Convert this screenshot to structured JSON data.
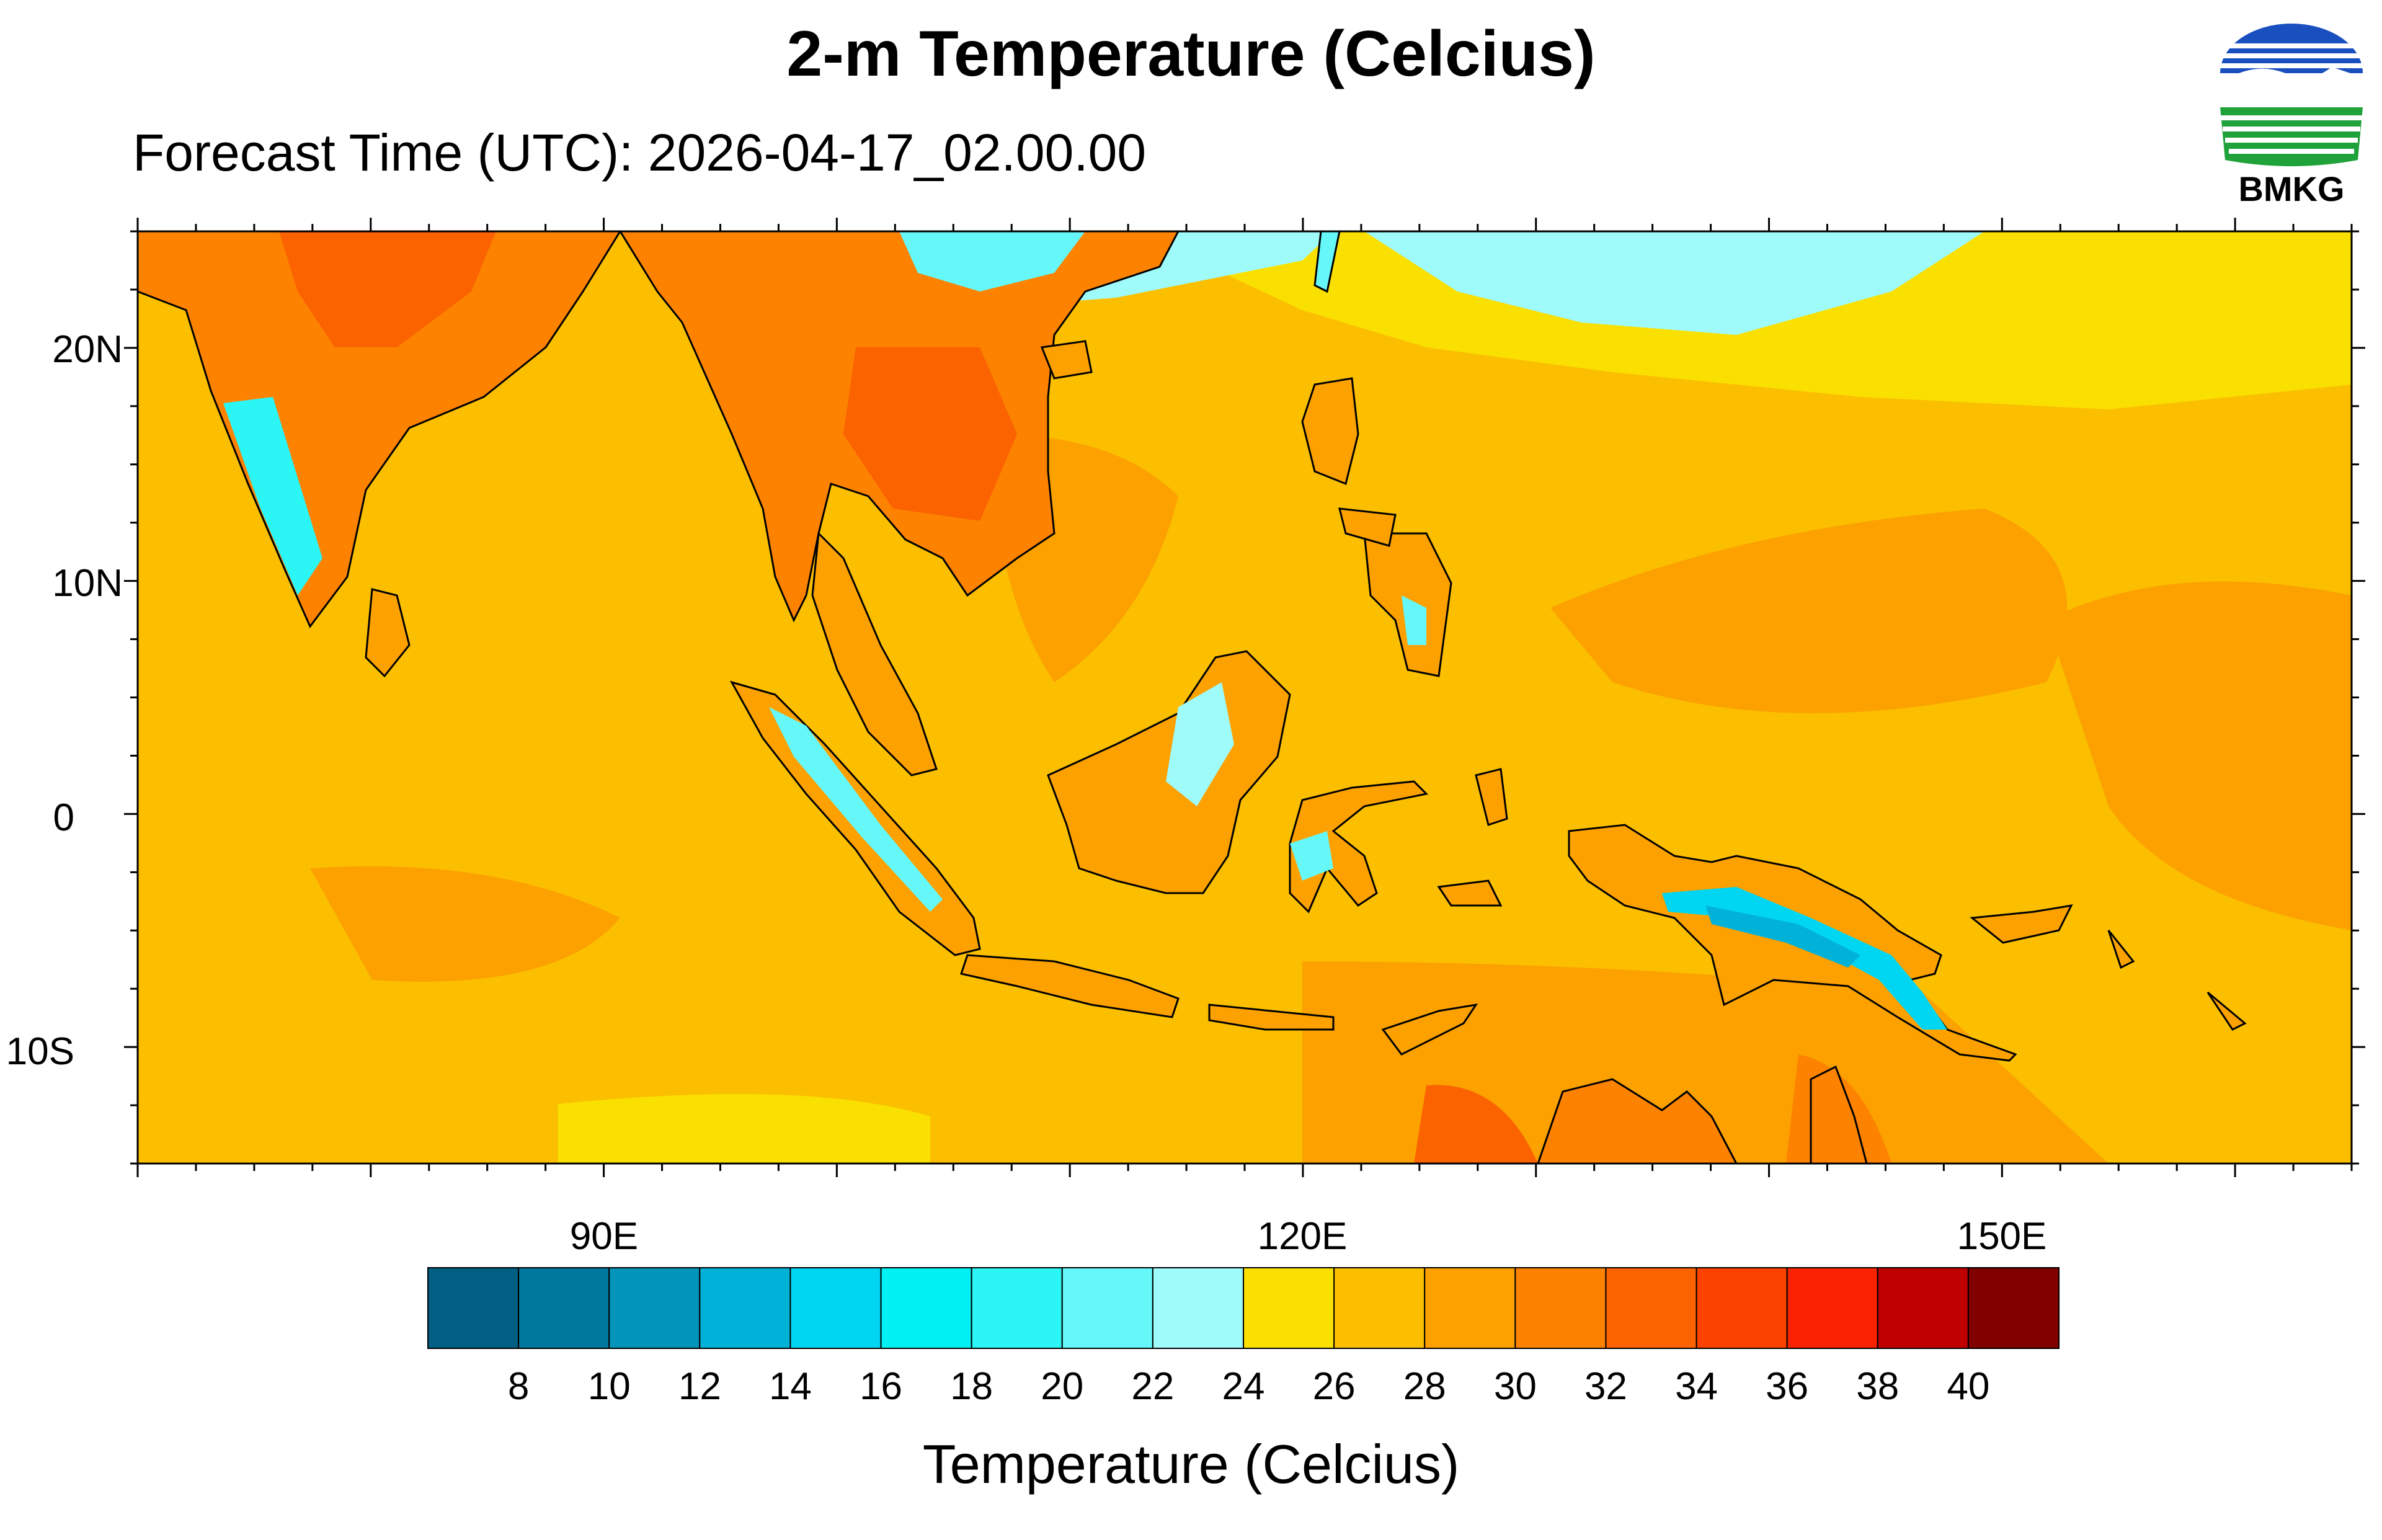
{
  "header": {
    "title": "2-m Temperature (Celcius)",
    "subtitle": "Forecast Time (UTC): 2026-04-17_02.00.00",
    "logo_text": "BMKG"
  },
  "map": {
    "lat_labels": [
      "20N",
      "10N",
      "0",
      "10S"
    ],
    "lon_labels": [
      "90E",
      "120E",
      "150E"
    ],
    "extent": {
      "lon_min": 70,
      "lon_max": 165,
      "lat_min": -15,
      "lat_max": 25
    }
  },
  "colorbar": {
    "title": "Temperature (Celcius)",
    "labels": [
      "8",
      "10",
      "12",
      "14",
      "16",
      "18",
      "20",
      "22",
      "24",
      "26",
      "28",
      "30",
      "32",
      "34",
      "36",
      "38",
      "40"
    ],
    "colors": [
      "#005f82",
      "#00789e",
      "#0095b9",
      "#00b2d8",
      "#00d6f2",
      "#00f0f4",
      "#2cf5f5",
      "#66f8f8",
      "#9ffafa",
      "#fae000",
      "#fbbf00",
      "#fca100",
      "#fc8200",
      "#fb6200",
      "#fb4200",
      "#fa2200",
      "#c00000",
      "#800000"
    ]
  },
  "colors": {
    "background": "#fbbf00",
    "coastline": "#000000"
  }
}
